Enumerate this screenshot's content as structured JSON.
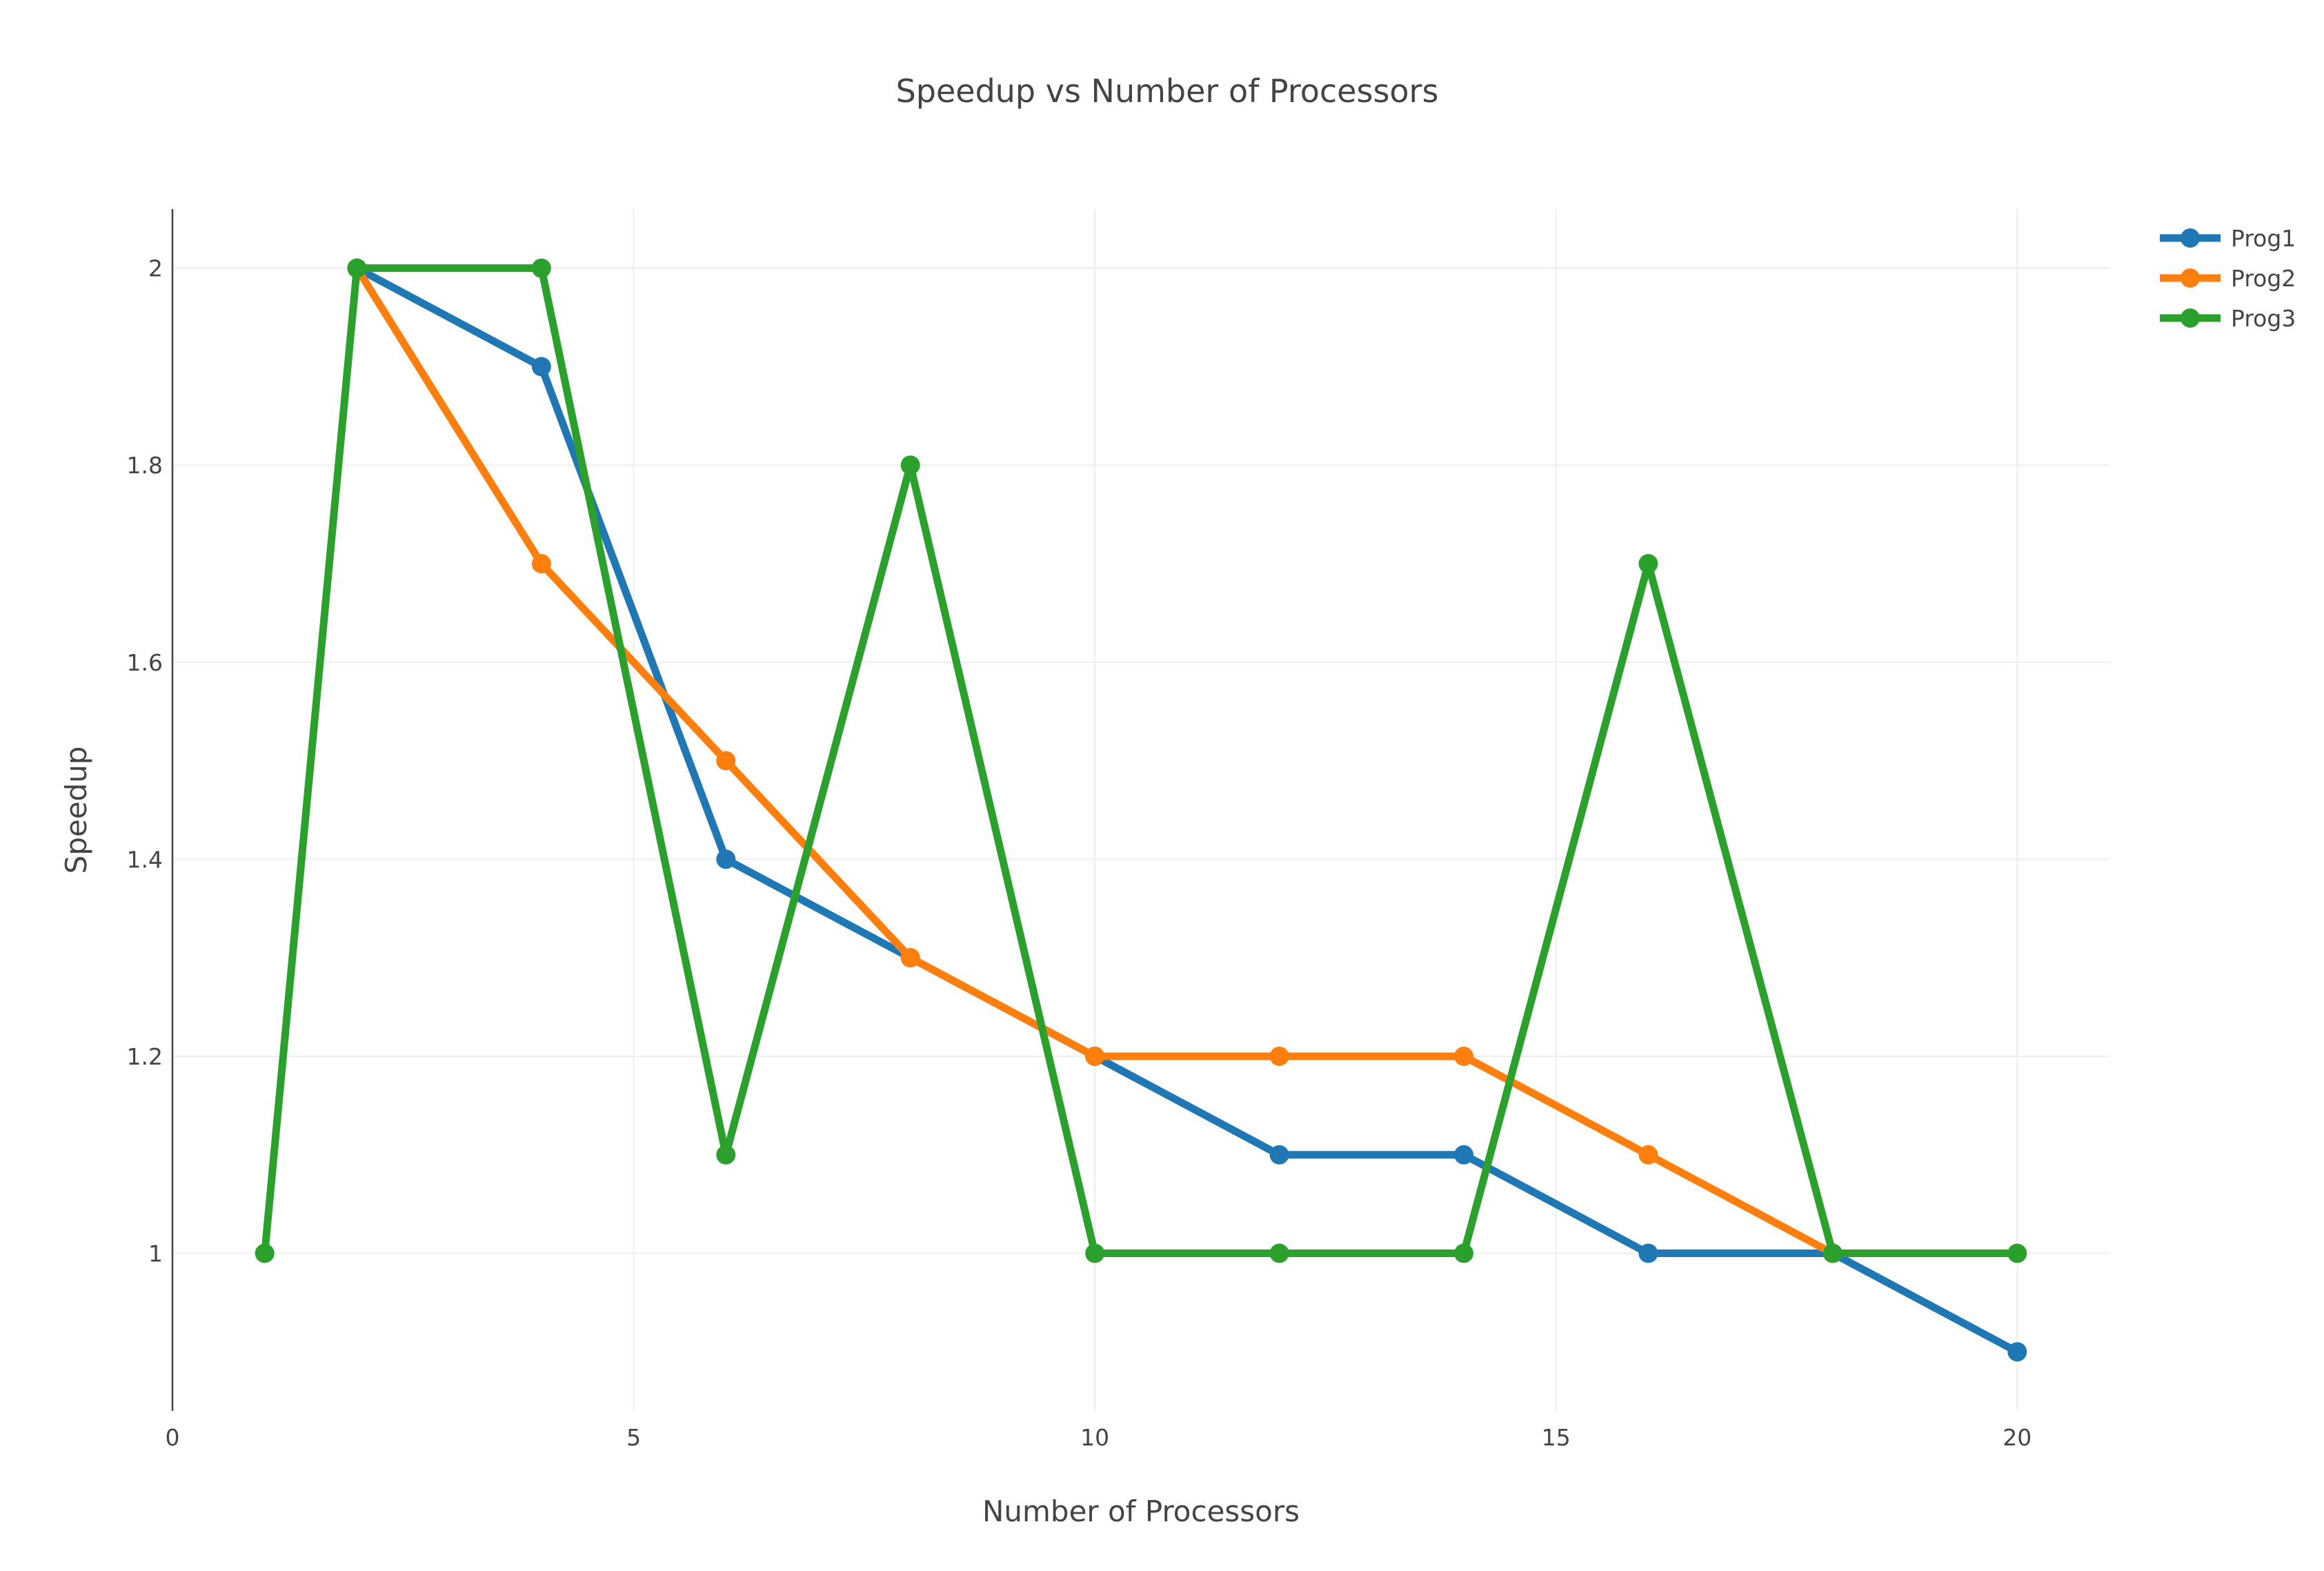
{
  "chart_data": {
    "type": "line",
    "title": "Speedup vs Number of Processors",
    "xlabel": "Number of Processors",
    "ylabel": "Speedup",
    "xlim": [
      0,
      21
    ],
    "ylim": [
      0.84,
      2.06
    ],
    "x_ticks": [
      "0",
      "5",
      "10",
      "15",
      "20"
    ],
    "y_ticks": [
      "1",
      "1.2",
      "1.4",
      "1.6",
      "1.8",
      "2"
    ],
    "grid": true,
    "legend_position": "top-right",
    "x": [
      1,
      2,
      4,
      6,
      8,
      10,
      12,
      14,
      16,
      18,
      20
    ],
    "series": [
      {
        "name": "Prog1",
        "color": "#1f77b4",
        "x": [
          2,
          4,
          6,
          8,
          10,
          12,
          14,
          16,
          18,
          20
        ],
        "values": [
          2.0,
          1.9,
          1.4,
          1.3,
          1.2,
          1.1,
          1.1,
          1.0,
          1.0,
          0.9
        ]
      },
      {
        "name": "Prog2",
        "color": "#ff7f0e",
        "x": [
          2,
          4,
          6,
          8,
          10,
          12,
          14,
          16,
          18
        ],
        "values": [
          2.0,
          1.7,
          1.5,
          1.3,
          1.2,
          1.2,
          1.2,
          1.1,
          1.0
        ]
      },
      {
        "name": "Prog3",
        "color": "#2ca02c",
        "x": [
          1,
          2,
          4,
          6,
          8,
          10,
          12,
          14,
          16,
          18,
          20
        ],
        "values": [
          1.0,
          2.0,
          2.0,
          1.1,
          1.8,
          1.0,
          1.0,
          1.0,
          1.7,
          1.0,
          1.0
        ]
      }
    ]
  }
}
